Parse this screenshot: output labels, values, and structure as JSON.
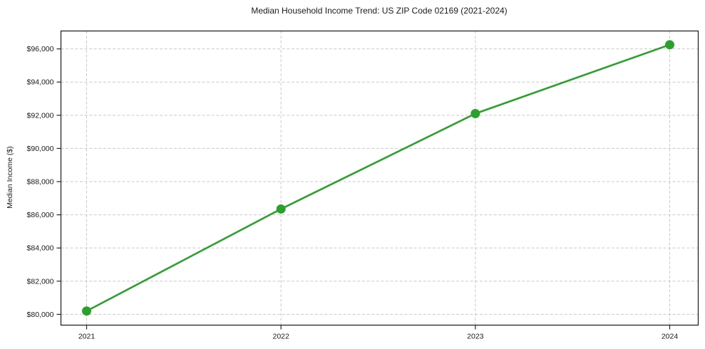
{
  "chart_data": {
    "type": "line",
    "title": "Median Household Income Trend: US ZIP Code 02169 (2021-2024)",
    "xlabel": "",
    "ylabel": "Median Income ($)",
    "categories": [
      "2021",
      "2022",
      "2023",
      "2024"
    ],
    "series": [
      {
        "name": "Median Household Income",
        "values": [
          80200,
          86350,
          92100,
          96250
        ]
      }
    ],
    "y_ticks": [
      80000,
      82000,
      84000,
      86000,
      88000,
      90000,
      92000,
      94000,
      96000
    ],
    "y_tick_labels": [
      "$80,000",
      "$82,000",
      "$84,000",
      "$86,000",
      "$88,000",
      "$90,000",
      "$92,000",
      "$94,000",
      "$96,000"
    ],
    "ylim": [
      79350,
      97080
    ],
    "grid": true,
    "grid_style": "dashed",
    "legend_position": "none",
    "colors": {
      "line": "#2ca02c",
      "marker": "#2ca02c",
      "grid": "#c9c9c9",
      "axis_frame": "#262626",
      "text": "#1a1a1a",
      "background": "#ffffff"
    },
    "marker_shape": "circle",
    "marker_radius": 6.5,
    "line_width": 2.6
  }
}
